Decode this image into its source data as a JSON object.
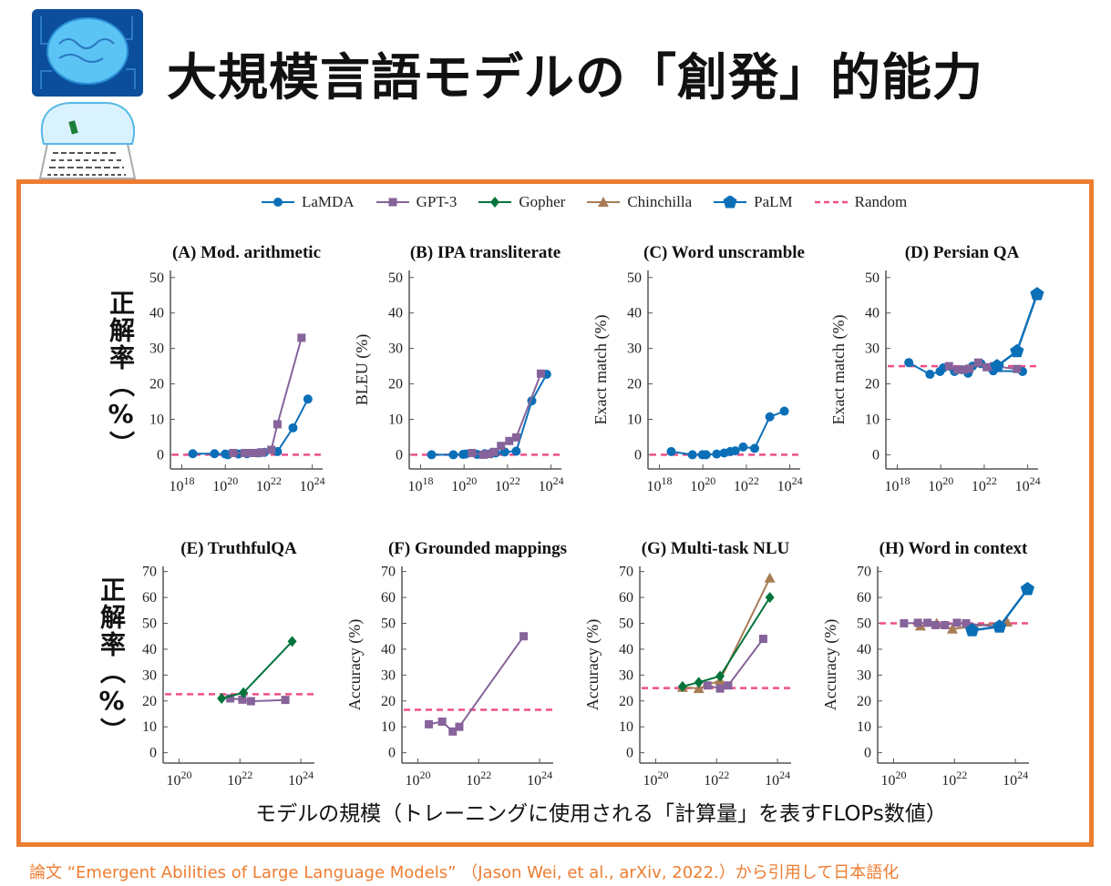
{
  "title": "大規模言語モデルの「創発」的能力",
  "y_side_label": "正解率（%）",
  "x_caption": "モデルの規模（トレーニングに使用される「計算量」を表すFLOPs数値）",
  "citation": "論文 “Emergent Abilities of Large Language Models” （Jason Wei, et al., arXiv, 2022.）から引用して日本語化",
  "colors": {
    "frame": "#ED7D31",
    "citation": "#ED7D31"
  },
  "legend": [
    {
      "name": "LaMDA",
      "color": "#0b6fb8",
      "marker": "circle"
    },
    {
      "name": "GPT-3",
      "color": "#86639a",
      "marker": "square"
    },
    {
      "name": "Gopher",
      "color": "#00733a",
      "marker": "diamond"
    },
    {
      "name": "Chinchilla",
      "color": "#a87c55",
      "marker": "triangle"
    },
    {
      "name": "PaLM",
      "color": "#0b6fb8",
      "marker": "pentagon"
    },
    {
      "name": "Random",
      "color": "#f04e8a",
      "marker": "dashed-line"
    }
  ],
  "chart_data": [
    {
      "type": "line",
      "title": "(A) Mod. arithmetic",
      "ylabel": "",
      "xscale": "log",
      "xlim": [
        3e+17,
        3e+24
      ],
      "ylim": [
        -4,
        52
      ],
      "xticks": [
        18,
        20,
        22,
        24
      ],
      "yticks": [
        0,
        10,
        20,
        30,
        40,
        50
      ],
      "random": 0,
      "series": [
        {
          "name": "LaMDA",
          "x": [
            3.2e+18,
            3.2e+19,
            1e+20,
            1.3e+20,
            4e+20,
            1e+21,
            3.2e+21,
            6.3e+21,
            2.5e+22,
            1.3e+23,
            6.3e+23
          ],
          "y": [
            0.3,
            0.3,
            0.2,
            0,
            0.2,
            0.3,
            0.5,
            0.7,
            0.9,
            7.6,
            15.7
          ]
        },
        {
          "name": "GPT-3",
          "x": [
            2.3e+20,
            7.8e+20,
            1.3e+21,
            2.2e+21,
            3.3e+21,
            5e+21,
            1.3e+22,
            2.5e+22,
            3.2e+23
          ],
          "y": [
            0.5,
            0.5,
            0.5,
            0.5,
            0.5,
            0.7,
            1.4,
            8.6,
            33
          ]
        }
      ]
    },
    {
      "type": "line",
      "title": "(B) IPA transliterate",
      "ylabel": "BLEU (%)",
      "xscale": "log",
      "xlim": [
        3e+17,
        3e+24
      ],
      "ylim": [
        -4,
        52
      ],
      "xticks": [
        18,
        20,
        22,
        24
      ],
      "yticks": [
        0,
        10,
        20,
        30,
        40,
        50
      ],
      "random": 0,
      "series": [
        {
          "name": "LaMDA",
          "x": [
            3.2e+18,
            3.2e+19,
            9e+19,
            1.2e+20,
            4e+20,
            9e+20,
            1.6e+21,
            2.8e+21,
            7.4e+21,
            2.5e+22,
            1.3e+23,
            6.3e+23
          ],
          "y": [
            0,
            0,
            0.1,
            0.2,
            0.1,
            0.3,
            0.3,
            0.5,
            0.8,
            1,
            15.2,
            22.7
          ]
        },
        {
          "name": "GPT-3",
          "x": [
            2.3e+20,
            7.8e+20,
            1.4e+21,
            2.4e+21,
            5e+21,
            1.2e+22,
            2.5e+22,
            3.4e+23
          ],
          "y": [
            0.5,
            0,
            0.2,
            0.8,
            2.5,
            3.9,
            4.9,
            22.9
          ]
        }
      ]
    },
    {
      "type": "line",
      "title": "(C) Word unscramble",
      "ylabel": "Exact match (%)",
      "xscale": "log",
      "xlim": [
        3e+17,
        3e+24
      ],
      "ylim": [
        -4,
        52
      ],
      "xticks": [
        18,
        20,
        22,
        24
      ],
      "yticks": [
        0,
        10,
        20,
        30,
        40,
        50
      ],
      "random": 0,
      "series": [
        {
          "name": "LaMDA",
          "x": [
            3.5e+18,
            3.3e+19,
            9.6e+19,
            1.4e+20,
            4.3e+20,
            9.5e+20,
            1.8e+21,
            3.1e+21,
            7.1e+21,
            2.4e+22,
            1.2e+23,
            5.6e+23
          ],
          "y": [
            0.9,
            0,
            0,
            0,
            0.2,
            0.5,
            0.9,
            1.1,
            2.2,
            1.8,
            10.7,
            12.3
          ]
        }
      ]
    },
    {
      "type": "line",
      "title": "(D) Persian QA",
      "ylabel": "Exact match (%)",
      "xscale": "log",
      "xlim": [
        3e+17,
        3e+24
      ],
      "ylim": [
        -4,
        52
      ],
      "xticks": [
        18,
        20,
        22,
        24
      ],
      "yticks": [
        0,
        10,
        20,
        30,
        40,
        50
      ],
      "random": 25,
      "series": [
        {
          "name": "LaMDA",
          "x": [
            3.4e+18,
            3.2e+19,
            9.3e+19,
            1.3e+20,
            4.3e+20,
            8.9e+20,
            1.8e+21,
            2.9e+21,
            7.1e+21,
            2.6e+22,
            5.8e+23
          ],
          "y": [
            26,
            22.7,
            23.5,
            24.5,
            23.5,
            24,
            23,
            25,
            25.7,
            23.7,
            23.5
          ]
        },
        {
          "name": "GPT-3",
          "x": [
            2.4e+20,
            5.9e+20,
            1.1e+21,
            2.1e+21,
            5.3e+21,
            1.3e+22,
            2.8e+22,
            3.2e+23
          ],
          "y": [
            25,
            24,
            24,
            24.3,
            26,
            24.7,
            25,
            24.2
          ]
        },
        {
          "name": "PaLM",
          "x": [
            3.9e+22,
            3.2e+23,
            2.7e+24
          ],
          "y": [
            25,
            29.2,
            45.3
          ]
        }
      ]
    },
    {
      "type": "line",
      "title": "(E) TruthfulQA",
      "ylabel": "",
      "xscale": "log",
      "xlim": [
        3e+19,
        2.8e+24
      ],
      "ylim": [
        -4,
        72
      ],
      "xticks": [
        20,
        22,
        24
      ],
      "yticks": [
        0,
        10,
        20,
        30,
        40,
        50,
        60,
        70
      ],
      "random": 22.6,
      "series": [
        {
          "name": "GPT-3",
          "x": [
            4.8e+21,
            1.2e+22,
            2.3e+22,
            3.1e+23
          ],
          "y": [
            21,
            20.5,
            19.9,
            20.4
          ]
        },
        {
          "name": "Gopher",
          "x": [
            2.5e+21,
            1.3e+22,
            5.2e+23
          ],
          "y": [
            21,
            23.2,
            43
          ]
        }
      ]
    },
    {
      "type": "line",
      "title": "(F) Grounded mappings",
      "ylabel": "Accuracy (%)",
      "xscale": "log",
      "xlim": [
        3e+19,
        2.8e+24
      ],
      "ylim": [
        -4,
        72
      ],
      "xticks": [
        20,
        22,
        24
      ],
      "yticks": [
        0,
        10,
        20,
        30,
        40,
        50,
        60,
        70
      ],
      "random": 16.6,
      "series": [
        {
          "name": "GPT-3",
          "x": [
            2.3e+20,
            6.3e+20,
            1.4e+21,
            2.3e+21,
            3e+23
          ],
          "y": [
            11,
            12,
            8.2,
            10,
            45
          ]
        }
      ]
    },
    {
      "type": "line",
      "title": "(G) Multi-task NLU",
      "ylabel": "Accuracy (%)",
      "xscale": "log",
      "xlim": [
        3e+19,
        2.8e+24
      ],
      "ylim": [
        -4,
        72
      ],
      "xticks": [
        20,
        22,
        24
      ],
      "yticks": [
        0,
        10,
        20,
        30,
        40,
        50,
        60,
        70
      ],
      "random": 25,
      "series": [
        {
          "name": "Chinchilla",
          "x": [
            7.6e+20,
            2.6e+21,
            1.3e+22,
            5.6e+23
          ],
          "y": [
            25.3,
            24.8,
            28,
            67.5
          ]
        },
        {
          "name": "GPT-3",
          "x": [
            5e+21,
            1.3e+22,
            2.4e+22,
            3.4e+23
          ],
          "y": [
            26,
            24.8,
            26,
            44
          ]
        },
        {
          "name": "Gopher",
          "x": [
            7.6e+20,
            2.6e+21,
            1.3e+22,
            5.6e+23
          ],
          "y": [
            25.6,
            27.2,
            29.6,
            60
          ]
        }
      ]
    },
    {
      "type": "line",
      "title": "(H) Word in context",
      "ylabel": "Accuracy (%)",
      "xscale": "log",
      "xlim": [
        3e+19,
        2.8e+24
      ],
      "ylim": [
        -4,
        72
      ],
      "xticks": [
        20,
        22,
        24
      ],
      "yticks": [
        0,
        10,
        20,
        30,
        40,
        50,
        60,
        70
      ],
      "random": 50,
      "series": [
        {
          "name": "Chinchilla",
          "x": [
            7.6e+20,
            2.6e+21,
            8.5e+21,
            5.4e+23
          ],
          "y": [
            49,
            50,
            47.8,
            50.5
          ]
        },
        {
          "name": "GPT-3",
          "x": [
            2.2e+20,
            6.3e+20,
            1.3e+21,
            2.4e+21,
            4.8e+21,
            1.2e+22,
            2.4e+22,
            3.2e+23
          ],
          "y": [
            50,
            50.2,
            50.2,
            49.3,
            49.3,
            50.2,
            50,
            48.5
          ]
        },
        {
          "name": "PaLM",
          "x": [
            3.8e+22,
            3e+23,
            2.5e+24
          ],
          "y": [
            47.3,
            48.7,
            63.2
          ]
        }
      ]
    }
  ]
}
